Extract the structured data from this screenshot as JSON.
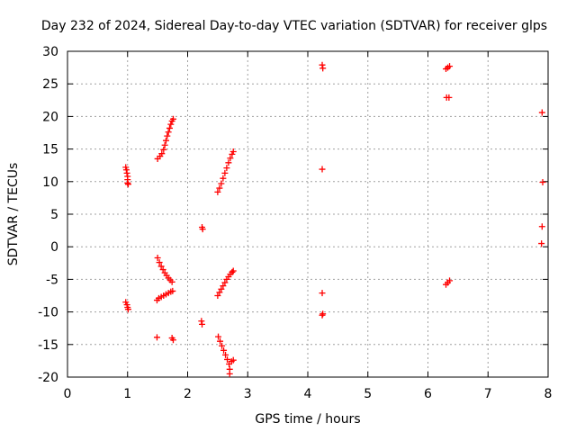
{
  "chart_data": {
    "type": "scatter",
    "title": "Day 232 of 2024, Sidereal Day-to-day VTEC variation (SDTVAR) for receiver glps",
    "xlabel": "GPS time / hours",
    "ylabel": "SDTVAR / TECUs",
    "xlim": [
      0,
      8
    ],
    "ylim": [
      -20,
      30
    ],
    "x_ticks": [
      0,
      1,
      2,
      3,
      4,
      5,
      6,
      7,
      8
    ],
    "y_ticks": [
      -20,
      -15,
      -10,
      -5,
      0,
      5,
      10,
      15,
      20,
      25,
      30
    ],
    "grid": true,
    "marker": "plus",
    "color": "#ff0000",
    "series": [
      {
        "name": "SDTVAR",
        "points": [
          [
            0.97,
            12.2
          ],
          [
            0.98,
            11.8
          ],
          [
            0.99,
            11.3
          ],
          [
            1.0,
            10.8
          ],
          [
            1.0,
            10.3
          ],
          [
            1.0,
            9.8
          ],
          [
            1.01,
            9.6
          ],
          [
            0.97,
            -8.5
          ],
          [
            0.99,
            -8.9
          ],
          [
            1.0,
            -9.3
          ],
          [
            1.01,
            -9.6
          ],
          [
            1.49,
            -13.9
          ],
          [
            1.74,
            -14.0
          ],
          [
            1.76,
            -14.3
          ],
          [
            1.5,
            13.5
          ],
          [
            1.54,
            13.9
          ],
          [
            1.57,
            14.3
          ],
          [
            1.6,
            14.9
          ],
          [
            1.62,
            15.6
          ],
          [
            1.64,
            16.3
          ],
          [
            1.66,
            17.0
          ],
          [
            1.68,
            17.6
          ],
          [
            1.7,
            18.2
          ],
          [
            1.72,
            18.8
          ],
          [
            1.74,
            19.3
          ],
          [
            1.76,
            19.6
          ],
          [
            1.5,
            -1.7
          ],
          [
            1.53,
            -2.4
          ],
          [
            1.56,
            -3.0
          ],
          [
            1.59,
            -3.5
          ],
          [
            1.62,
            -4.0
          ],
          [
            1.65,
            -4.4
          ],
          [
            1.68,
            -4.8
          ],
          [
            1.71,
            -5.1
          ],
          [
            1.74,
            -5.4
          ],
          [
            1.49,
            -8.2
          ],
          [
            1.52,
            -7.9
          ],
          [
            1.56,
            -7.7
          ],
          [
            1.6,
            -7.5
          ],
          [
            1.64,
            -7.3
          ],
          [
            1.68,
            -7.1
          ],
          [
            1.72,
            -6.9
          ],
          [
            1.75,
            -6.8
          ],
          [
            2.24,
            3.0
          ],
          [
            2.25,
            2.7
          ],
          [
            2.23,
            -11.4
          ],
          [
            2.24,
            -11.9
          ],
          [
            2.5,
            8.4
          ],
          [
            2.53,
            9.0
          ],
          [
            2.56,
            9.7
          ],
          [
            2.59,
            10.5
          ],
          [
            2.62,
            11.3
          ],
          [
            2.65,
            12.1
          ],
          [
            2.68,
            12.9
          ],
          [
            2.71,
            13.6
          ],
          [
            2.74,
            14.2
          ],
          [
            2.76,
            14.6
          ],
          [
            2.5,
            -7.5
          ],
          [
            2.53,
            -7.0
          ],
          [
            2.56,
            -6.5
          ],
          [
            2.59,
            -6.0
          ],
          [
            2.62,
            -5.5
          ],
          [
            2.65,
            -5.0
          ],
          [
            2.68,
            -4.6
          ],
          [
            2.71,
            -4.2
          ],
          [
            2.74,
            -3.9
          ],
          [
            2.76,
            -3.7
          ],
          [
            2.51,
            -13.8
          ],
          [
            2.54,
            -14.5
          ],
          [
            2.57,
            -15.2
          ],
          [
            2.6,
            -15.9
          ],
          [
            2.63,
            -16.6
          ],
          [
            2.66,
            -17.3
          ],
          [
            2.69,
            -18.0
          ],
          [
            2.7,
            -18.8
          ],
          [
            2.7,
            -19.5
          ],
          [
            2.73,
            -17.6
          ],
          [
            2.76,
            -17.4
          ],
          [
            4.24,
            27.9
          ],
          [
            4.25,
            27.4
          ],
          [
            4.24,
            11.9
          ],
          [
            4.24,
            -7.1
          ],
          [
            4.25,
            -10.3
          ],
          [
            4.24,
            -10.5
          ],
          [
            6.3,
            27.3
          ],
          [
            6.33,
            27.5
          ],
          [
            6.36,
            27.7
          ],
          [
            6.31,
            22.9
          ],
          [
            6.35,
            22.9
          ],
          [
            6.3,
            -5.8
          ],
          [
            6.33,
            -5.5
          ],
          [
            6.36,
            -5.2
          ],
          [
            7.9,
            20.6
          ],
          [
            7.91,
            9.9
          ],
          [
            7.9,
            3.1
          ],
          [
            7.89,
            0.5
          ]
        ]
      }
    ]
  }
}
